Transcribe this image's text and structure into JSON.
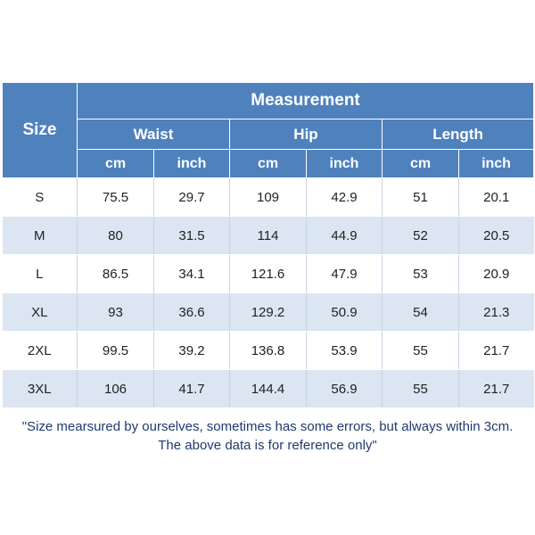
{
  "table": {
    "size_header": "Size",
    "measurement_header": "Measurement",
    "groups": [
      "Waist",
      "Hip",
      "Length"
    ],
    "units": [
      "cm",
      "inch",
      "cm",
      "inch",
      "cm",
      "inch"
    ],
    "rows": [
      {
        "size": "S",
        "values": [
          "75.5",
          "29.7",
          "109",
          "42.9",
          "51",
          "20.1"
        ]
      },
      {
        "size": "M",
        "values": [
          "80",
          "31.5",
          "114",
          "44.9",
          "52",
          "20.5"
        ]
      },
      {
        "size": "L",
        "values": [
          "86.5",
          "34.1",
          "121.6",
          "47.9",
          "53",
          "20.9"
        ]
      },
      {
        "size": "XL",
        "values": [
          "93",
          "36.6",
          "129.2",
          "50.9",
          "54",
          "21.3"
        ]
      },
      {
        "size": "2XL",
        "values": [
          "99.5",
          "39.2",
          "136.8",
          "53.9",
          "55",
          "21.7"
        ]
      },
      {
        "size": "3XL",
        "values": [
          "106",
          "41.7",
          "144.4",
          "56.9",
          "55",
          "21.7"
        ]
      }
    ]
  },
  "note": {
    "line1": "\"Size mearsured by ourselves, sometimes has some errors, but always within 3cm.",
    "line2": "The above data is for reference only\""
  },
  "colors": {
    "header_bg": "#4f81bd",
    "stripe_bg": "#dce6f2",
    "note_text": "#1f3a6e"
  }
}
